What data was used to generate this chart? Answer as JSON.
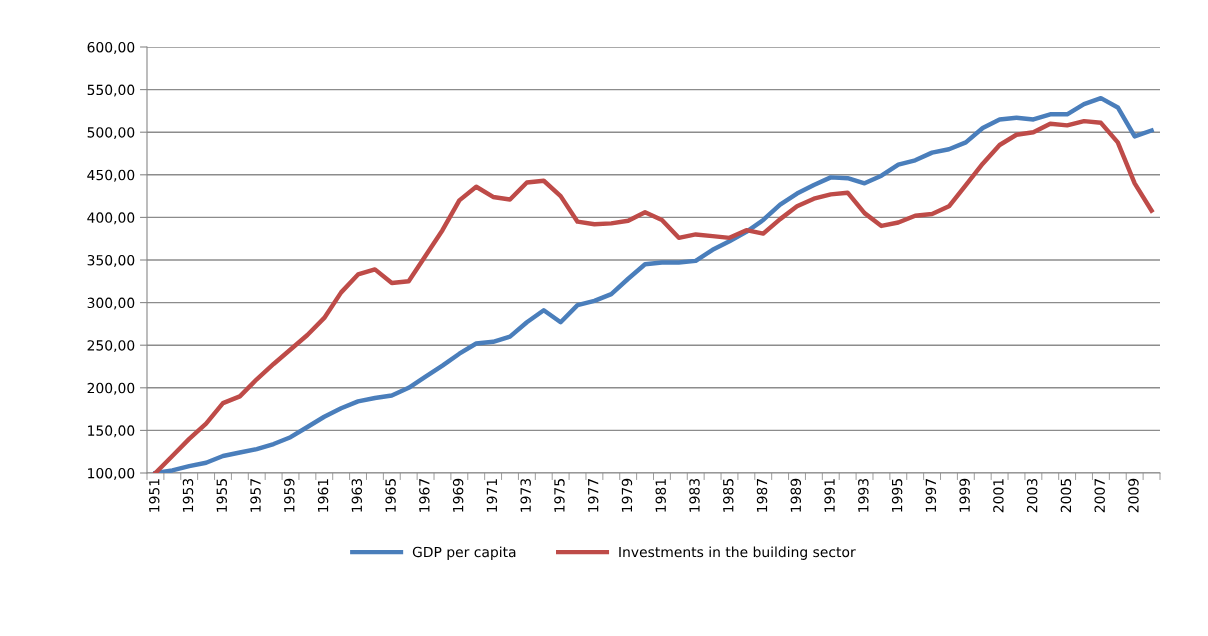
{
  "chart_data": {
    "type": "line",
    "categories": [
      "1951",
      null,
      "1953",
      null,
      "1955",
      null,
      "1957",
      null,
      "1959",
      null,
      "1961",
      null,
      "1963",
      null,
      "1965",
      null,
      "1967",
      null,
      "1969",
      null,
      "1971",
      null,
      "1973",
      null,
      "1975",
      null,
      "1977",
      null,
      "1979",
      null,
      "1981",
      null,
      "1983",
      null,
      "1985",
      null,
      "1987",
      null,
      "1989",
      null,
      "1991",
      null,
      "1993",
      null,
      "1995",
      null,
      "1997",
      null,
      "1999",
      null,
      "2001",
      null,
      "2003",
      null,
      "2005",
      null,
      "2007",
      null,
      "2009",
      null
    ],
    "series": [
      {
        "name": "GDP per capita",
        "color": "#4a7ebb",
        "values": [
          100,
          103,
          108,
          112,
          120,
          124,
          128,
          134,
          142,
          154,
          166,
          176,
          184,
          188,
          191,
          200,
          213,
          226,
          240,
          252,
          254,
          260,
          277,
          291,
          277,
          297,
          302,
          310,
          328,
          345,
          347,
          347,
          349,
          362,
          372,
          383,
          397,
          415,
          428,
          438,
          447,
          446,
          440,
          449,
          462,
          467,
          476,
          480,
          488,
          505,
          515,
          517,
          515,
          521,
          521,
          533,
          540,
          529,
          495,
          502
        ]
      },
      {
        "name": "Investments in the building sector",
        "color": "#be4b48",
        "values": [
          100,
          120,
          140,
          158,
          182,
          190,
          210,
          228,
          245,
          262,
          282,
          312,
          333,
          339,
          323,
          325,
          355,
          385,
          420,
          436,
          424,
          421,
          441,
          443,
          425,
          395,
          392,
          393,
          396,
          406,
          397,
          376,
          380,
          378,
          376,
          385,
          381,
          398,
          413,
          422,
          427,
          429,
          405,
          390,
          394,
          402,
          404,
          413,
          438,
          463,
          485,
          497,
          500,
          510,
          508,
          513,
          511,
          488,
          440,
          408
        ]
      }
    ],
    "ylim": [
      100,
      600
    ],
    "yticks": [
      {
        "value": 100,
        "label": "100,00"
      },
      {
        "value": 150,
        "label": "150,00"
      },
      {
        "value": 200,
        "label": "200,00"
      },
      {
        "value": 250,
        "label": "250,00"
      },
      {
        "value": 300,
        "label": "300,00"
      },
      {
        "value": 350,
        "label": "350,00"
      },
      {
        "value": 400,
        "label": "400,00"
      },
      {
        "value": 450,
        "label": "450,00"
      },
      {
        "value": 500,
        "label": "500,00"
      },
      {
        "value": 550,
        "label": "550,00"
      },
      {
        "value": 600,
        "label": "600,00"
      }
    ],
    "grid": "y",
    "legend": "bottom",
    "marker": "none",
    "line_style": "solid"
  }
}
